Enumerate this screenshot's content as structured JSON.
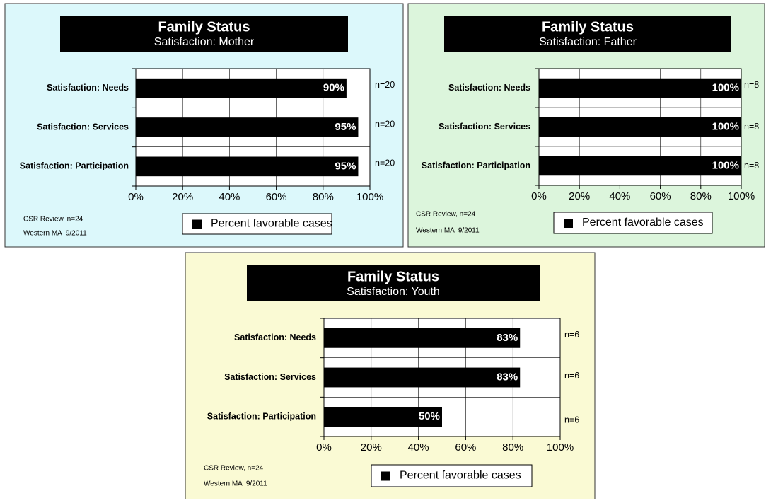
{
  "chart_data": [
    {
      "type": "bar",
      "title": "Family Status",
      "subtitle": "Satisfaction: Mother",
      "categories": [
        "Satisfaction: Needs",
        "Satisfaction:  Services",
        "Satisfaction: Participation"
      ],
      "series": [
        {
          "name": "Percent favorable cases",
          "color": "#000000",
          "values": [
            90,
            95,
            95
          ],
          "value_labels": [
            "90%",
            "95%",
            "95%"
          ]
        }
      ],
      "annotations": [
        "n=20",
        "n=20",
        "n=20"
      ],
      "notes": [
        "CSR Review, n=24",
        "Western MA  9/2011"
      ],
      "xlim": [
        0,
        100
      ],
      "xticks": [
        {
          "value": 0,
          "label": "0%"
        },
        {
          "value": 20,
          "label": "20%"
        },
        {
          "value": 40,
          "label": "40%"
        },
        {
          "value": 60,
          "label": "60%"
        },
        {
          "value": 80,
          "label": "80%"
        },
        {
          "value": 100,
          "label": "100%"
        }
      ],
      "grid": true
    },
    {
      "type": "bar",
      "title": "Family Status",
      "subtitle": "Satisfaction: Father",
      "categories": [
        "Satisfaction: Needs",
        "Satisfaction: Services",
        "Satisfaction: Participation"
      ],
      "series": [
        {
          "name": "Percent favorable cases",
          "color": "#000000",
          "values": [
            100,
            100,
            100
          ],
          "value_labels": [
            "100%",
            "100%",
            "100%"
          ]
        }
      ],
      "annotations": [
        "n=8",
        "n=8",
        "n=8"
      ],
      "notes": [
        "CSR Review, n=24",
        "Western MA  9/2011"
      ],
      "xlim": [
        0,
        100
      ],
      "xticks": [
        {
          "value": 0,
          "label": "0%"
        },
        {
          "value": 20,
          "label": "20%"
        },
        {
          "value": 40,
          "label": "40%"
        },
        {
          "value": 60,
          "label": "60%"
        },
        {
          "value": 80,
          "label": "80%"
        },
        {
          "value": 100,
          "label": "100%"
        }
      ],
      "grid": true
    },
    {
      "type": "bar",
      "title": "Family Status",
      "subtitle": "Satisfaction: Youth",
      "categories": [
        "Satisfaction: Needs",
        "Satisfaction: Services",
        "Satisfaction: Participation"
      ],
      "series": [
        {
          "name": "Percent favorable cases",
          "color": "#000000",
          "values": [
            83,
            83,
            50
          ],
          "value_labels": [
            "83%",
            "83%",
            "50%"
          ]
        }
      ],
      "annotations": [
        "n=6",
        "n=6",
        "n=6"
      ],
      "notes": [
        "CSR Review, n=24",
        "Western MA  9/2011"
      ],
      "xlim": [
        0,
        100
      ],
      "xticks": [
        {
          "value": 0,
          "label": "0%"
        },
        {
          "value": 20,
          "label": "20%"
        },
        {
          "value": 40,
          "label": "40%"
        },
        {
          "value": 60,
          "label": "60%"
        },
        {
          "value": 80,
          "label": "80%"
        },
        {
          "value": 100,
          "label": "100%"
        }
      ],
      "grid": true
    }
  ]
}
